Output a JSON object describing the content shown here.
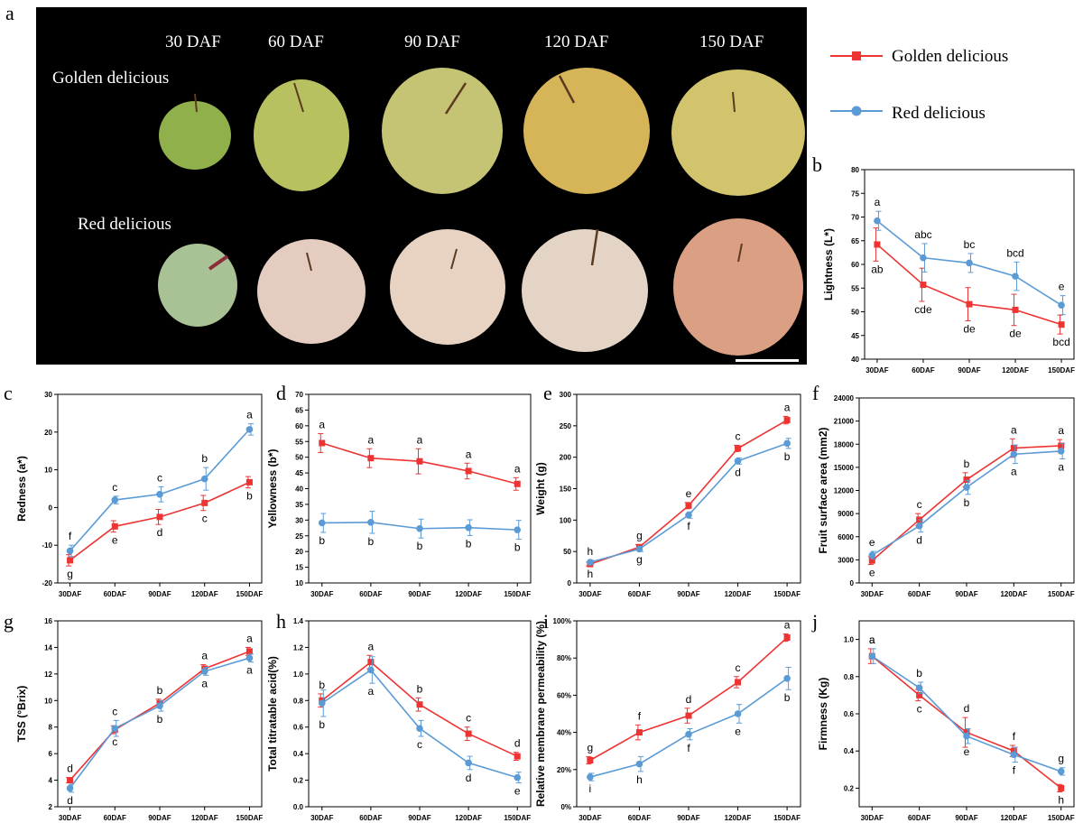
{
  "photo": {
    "stage_labels": [
      "30 DAF",
      "60 DAF",
      "90 DAF",
      "120 DAF",
      "150 DAF"
    ],
    "row_labels": [
      "Golden delicious",
      "Red delicious"
    ]
  },
  "legend": [
    "Golden delicious",
    "Red delicious"
  ],
  "colors": {
    "golden": "#ee3333",
    "red": "#5b9bd5",
    "photo_bg": "#000000"
  },
  "chart_data": [
    {
      "panel": "b",
      "type": "line",
      "ylabel": "Lightness (L*)",
      "categories": [
        "30DAF",
        "60DAF",
        "90DAF",
        "120DAF",
        "150DAF"
      ],
      "ylim": [
        40,
        80
      ],
      "yticks": [
        40,
        45,
        50,
        55,
        60,
        65,
        70,
        75,
        80
      ],
      "series": [
        {
          "name": "Golden delicious",
          "values": [
            64.2,
            55.7,
            51.6,
            50.4,
            47.3
          ],
          "errors": [
            3.5,
            3.5,
            3.5,
            3.3,
            2.0
          ],
          "labels": [
            "ab",
            "cde",
            "de",
            "de",
            "bcd"
          ]
        },
        {
          "name": "Red delicious",
          "values": [
            69.2,
            61.4,
            60.3,
            57.5,
            51.4
          ],
          "errors": [
            2.0,
            3.0,
            2.0,
            3.0,
            2.0
          ],
          "labels": [
            "a",
            "abc",
            "bc",
            "bcd",
            "e"
          ]
        }
      ]
    },
    {
      "panel": "c",
      "type": "line",
      "ylabel": "Redness (a*)",
      "categories": [
        "30DAF",
        "60DAF",
        "90DAF",
        "120DAF",
        "150DAF"
      ],
      "ylim": [
        -20,
        30
      ],
      "yticks": [
        -20,
        -10,
        0,
        10,
        20,
        30
      ],
      "series": [
        {
          "name": "Golden delicious",
          "values": [
            -14.0,
            -5.0,
            -2.5,
            1.2,
            6.7
          ],
          "errors": [
            1.5,
            1.5,
            2.0,
            2.0,
            1.5
          ],
          "labels": [
            "g",
            "e",
            "d",
            "c",
            "b"
          ]
        },
        {
          "name": "Red delicious",
          "values": [
            -11.5,
            2.0,
            3.5,
            7.6,
            20.7
          ],
          "errors": [
            1.5,
            1.0,
            2.0,
            3.0,
            1.5
          ],
          "labels": [
            "f",
            "c",
            "c",
            "b",
            "a"
          ]
        }
      ]
    },
    {
      "panel": "d",
      "type": "line",
      "ylabel": "Yellowness (b*)",
      "categories": [
        "30DAF",
        "60DAF",
        "90DAF",
        "120DAF",
        "150DAF"
      ],
      "ylim": [
        10,
        70
      ],
      "yticks": [
        10,
        15,
        20,
        25,
        30,
        35,
        40,
        45,
        50,
        55,
        60,
        65,
        70
      ],
      "series": [
        {
          "name": "Golden delicious",
          "values": [
            54.5,
            49.7,
            48.7,
            45.6,
            41.5
          ],
          "errors": [
            3.0,
            3.0,
            4.0,
            2.5,
            2.0
          ],
          "labels": [
            "a",
            "a",
            "a",
            "a",
            "a"
          ]
        },
        {
          "name": "Red delicious",
          "values": [
            29.1,
            29.3,
            27.3,
            27.6,
            26.9
          ],
          "errors": [
            3.0,
            3.5,
            3.0,
            2.5,
            3.0
          ],
          "labels": [
            "b",
            "b",
            "b",
            "b",
            "b"
          ]
        }
      ]
    },
    {
      "panel": "e",
      "type": "line",
      "ylabel": "Weight (g)",
      "categories": [
        "30DAF",
        "60DAF",
        "90DAF",
        "120DAF",
        "150DAF"
      ],
      "ylim": [
        0,
        300
      ],
      "yticks": [
        0,
        50,
        100,
        150,
        200,
        250,
        300
      ],
      "series": [
        {
          "name": "Golden delicious",
          "values": [
            30,
            57,
            123,
            214,
            259
          ],
          "errors": [
            3,
            4,
            5,
            5,
            6
          ],
          "labels": [
            "h",
            "g",
            "e",
            "c",
            "a"
          ]
        },
        {
          "name": "Red delicious",
          "values": [
            33,
            54,
            108,
            194,
            222
          ],
          "errors": [
            3,
            4,
            5,
            5,
            8
          ],
          "labels": [
            "h",
            "g",
            "f",
            "d",
            "b"
          ]
        }
      ]
    },
    {
      "panel": "f",
      "type": "line",
      "ylabel": "Fruit surface area (mm2)",
      "categories": [
        "30DAF",
        "60DAF",
        "90DAF",
        "120DAF",
        "150DAF"
      ],
      "ylim": [
        0,
        24000
      ],
      "yticks": [
        0,
        3000,
        6000,
        9000,
        12000,
        15000,
        18000,
        21000,
        24000
      ],
      "series": [
        {
          "name": "Golden delicious",
          "values": [
            2900,
            8200,
            13400,
            17500,
            17800
          ],
          "errors": [
            500,
            800,
            900,
            1200,
            800
          ],
          "labels": [
            "e",
            "c",
            "b",
            "a",
            "a"
          ]
        },
        {
          "name": "Red delicious",
          "values": [
            3600,
            7400,
            12400,
            16700,
            17100
          ],
          "errors": [
            500,
            800,
            900,
            1200,
            1000
          ],
          "labels": [
            "e",
            "d",
            "b",
            "a",
            "a"
          ]
        }
      ]
    },
    {
      "panel": "g",
      "type": "line",
      "ylabel": "TSS (°Brix)",
      "categories": [
        "30DAF",
        "60DAF",
        "90DAF",
        "120DAF",
        "150DAF"
      ],
      "ylim": [
        2,
        16
      ],
      "yticks": [
        2,
        4,
        6,
        8,
        10,
        12,
        14,
        16
      ],
      "series": [
        {
          "name": "Golden delicious",
          "values": [
            4.0,
            7.8,
            9.8,
            12.4,
            13.7
          ],
          "errors": [
            0.2,
            0.3,
            0.3,
            0.3,
            0.3
          ],
          "labels": [
            "d",
            "c",
            "b",
            "a",
            "a"
          ]
        },
        {
          "name": "Red delicious",
          "values": [
            3.4,
            7.9,
            9.6,
            12.2,
            13.2
          ],
          "errors": [
            0.3,
            0.6,
            0.4,
            0.3,
            0.3
          ],
          "labels": [
            "d",
            "c",
            "b",
            "a",
            "a"
          ]
        }
      ]
    },
    {
      "panel": "h",
      "type": "line",
      "ylabel": "Total titratable acid(%)",
      "categories": [
        "30DAF",
        "60DAF",
        "90DAF",
        "120DAF",
        "150DAF"
      ],
      "ylim": [
        0.0,
        1.4
      ],
      "yticks": [
        0.0,
        0.2,
        0.4,
        0.6,
        0.8,
        1.0,
        1.2,
        1.4
      ],
      "series": [
        {
          "name": "Golden delicious",
          "values": [
            0.8,
            1.09,
            0.77,
            0.55,
            0.38
          ],
          "errors": [
            0.05,
            0.05,
            0.05,
            0.05,
            0.03
          ],
          "labels": [
            "b",
            "a",
            "b",
            "c",
            "d"
          ]
        },
        {
          "name": "Red delicious",
          "values": [
            0.78,
            1.03,
            0.59,
            0.33,
            0.22
          ],
          "errors": [
            0.1,
            0.1,
            0.06,
            0.05,
            0.04
          ],
          "labels": [
            "b",
            "a",
            "c",
            "d",
            "e"
          ]
        }
      ]
    },
    {
      "panel": "i",
      "type": "line",
      "ylabel": "Relative membrane permeability (%)",
      "categories": [
        "30DAF",
        "60DAF",
        "90DAF",
        "120DAF",
        "150DAF"
      ],
      "ylim": [
        0,
        100
      ],
      "yticks": [
        0,
        20,
        40,
        60,
        80,
        100
      ],
      "ytick_suffix": "%",
      "series": [
        {
          "name": "Golden delicious",
          "values": [
            25,
            40,
            49,
            67,
            91
          ],
          "errors": [
            2,
            4,
            4,
            3,
            2
          ],
          "labels": [
            "g",
            "f",
            "d",
            "c",
            "a"
          ]
        },
        {
          "name": "Red delicious",
          "values": [
            16,
            23,
            39,
            50,
            69
          ],
          "errors": [
            2,
            4,
            3,
            5,
            6
          ],
          "labels": [
            "i",
            "h",
            "f",
            "e",
            "b"
          ]
        }
      ]
    },
    {
      "panel": "j",
      "type": "line",
      "ylabel": "Firmness (Kg)",
      "categories": [
        "30DAF",
        "60DAF",
        "90DAF",
        "120DAF",
        "150DAF"
      ],
      "ylim": [
        0.1,
        1.1
      ],
      "yticks": [
        0.2,
        0.4,
        0.6,
        0.8,
        1.0
      ],
      "series": [
        {
          "name": "Golden delicious",
          "values": [
            0.91,
            0.7,
            0.5,
            0.4,
            0.2
          ],
          "errors": [
            0.04,
            0.03,
            0.08,
            0.03,
            0.02
          ],
          "labels": [
            "a",
            "c",
            "d",
            "f",
            "h"
          ]
        },
        {
          "name": "Red delicious",
          "values": [
            0.91,
            0.74,
            0.48,
            0.38,
            0.29
          ],
          "errors": [
            0.04,
            0.03,
            0.04,
            0.04,
            0.02
          ],
          "labels": [
            "a",
            "b",
            "e",
            "f",
            "g"
          ]
        }
      ]
    }
  ]
}
